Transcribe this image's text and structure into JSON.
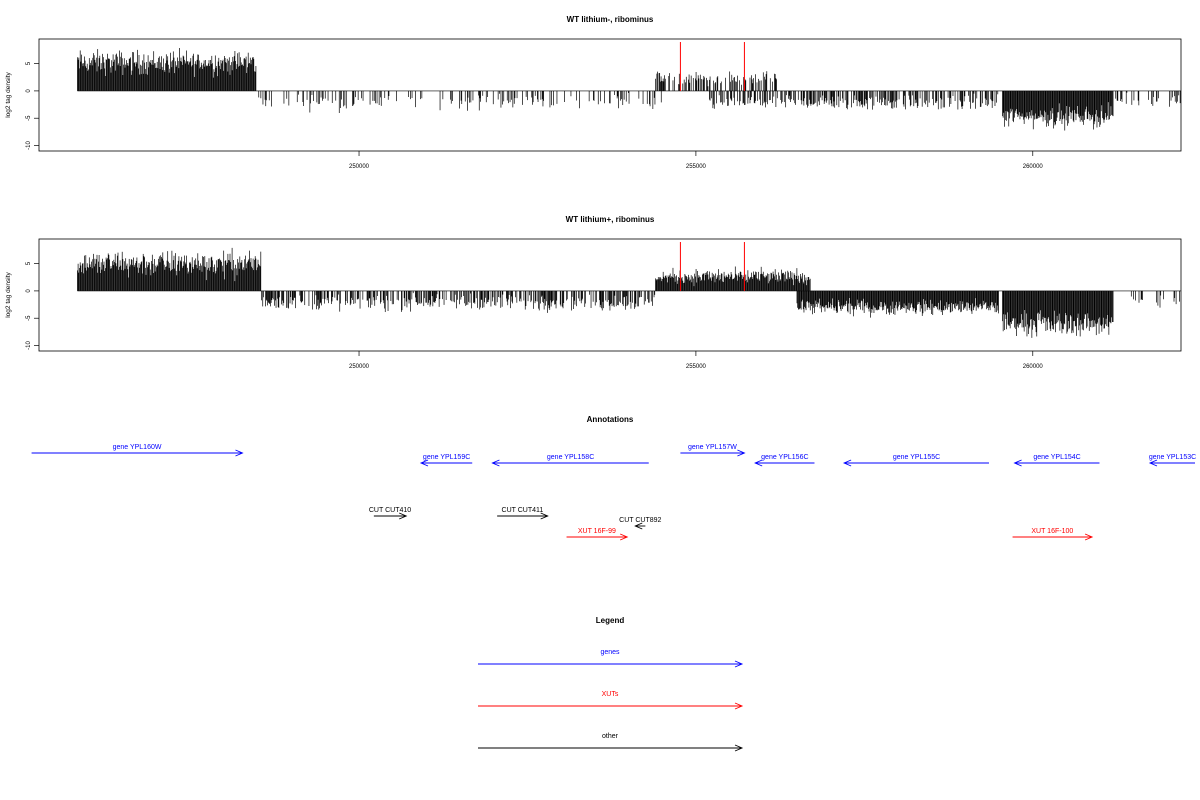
{
  "chart_data": [
    {
      "type": "bar",
      "title": "WT lithium-, ribominus",
      "ylabel": "log2 tag density",
      "xlim": [
        245250,
        262200
      ],
      "ylim": [
        -11,
        9.5
      ],
      "x_ticks": [
        250000,
        255000,
        260000
      ],
      "y_ticks": [
        -10,
        -5,
        0,
        5
      ],
      "tick_labels_x": [
        "250000",
        "255000",
        "260000"
      ],
      "tick_labels_y": [
        "-10",
        "-5",
        "0",
        "5"
      ],
      "red_markers_x": [
        254770,
        255720
      ],
      "series": [
        {
          "x_start": 245820,
          "x_end": 248470,
          "level": 5.2,
          "spread": 2.2,
          "density": "dense",
          "sign": "positive"
        },
        {
          "x_start": 248470,
          "x_end": 254500,
          "level": -2.0,
          "spread": 1.5,
          "density": "sparse",
          "sign": "negative"
        },
        {
          "x_start": 254400,
          "x_end": 256200,
          "level": 2.2,
          "spread": 1.3,
          "density": "medium",
          "sign": "positive"
        },
        {
          "x_start": 255200,
          "x_end": 259500,
          "level": -2.2,
          "spread": 1.3,
          "density": "medium",
          "sign": "negative"
        },
        {
          "x_start": 259550,
          "x_end": 261200,
          "level": -4.7,
          "spread": 2.0,
          "density": "dense",
          "sign": "negative"
        },
        {
          "x_start": 261200,
          "x_end": 262200,
          "level": -1.8,
          "spread": 1.1,
          "density": "sparse",
          "sign": "negative"
        }
      ]
    },
    {
      "type": "bar",
      "title": "WT lithium+, ribominus",
      "ylabel": "log2 tag density",
      "xlim": [
        245250,
        262200
      ],
      "ylim": [
        -11,
        9.5
      ],
      "x_ticks": [
        250000,
        255000,
        260000
      ],
      "y_ticks": [
        -10,
        -5,
        0,
        5
      ],
      "tick_labels_x": [
        "250000",
        "255000",
        "260000"
      ],
      "tick_labels_y": [
        "-10",
        "-5",
        "0",
        "5"
      ],
      "red_markers_x": [
        254770,
        255720
      ],
      "series": [
        {
          "x_start": 245820,
          "x_end": 248550,
          "level": 5.0,
          "spread": 2.4,
          "density": "dense",
          "sign": "positive"
        },
        {
          "x_start": 248550,
          "x_end": 254400,
          "level": -2.1,
          "spread": 1.5,
          "density": "medium",
          "sign": "negative"
        },
        {
          "x_start": 254400,
          "x_end": 256700,
          "level": 2.6,
          "spread": 1.4,
          "density": "dense",
          "sign": "positive"
        },
        {
          "x_start": 256500,
          "x_end": 259500,
          "level": -3.0,
          "spread": 1.4,
          "density": "dense",
          "sign": "negative"
        },
        {
          "x_start": 259550,
          "x_end": 261200,
          "level": -6.0,
          "spread": 2.2,
          "density": "dense",
          "sign": "negative"
        },
        {
          "x_start": 261400,
          "x_end": 262200,
          "level": -2.0,
          "spread": 1.2,
          "density": "sparse",
          "sign": "negative"
        }
      ]
    }
  ],
  "annotations": {
    "title": "Annotations",
    "genes": [
      {
        "label": "gene YPL160W",
        "x1": 245140,
        "x2": 248270,
        "dir": "right",
        "row": 0
      },
      {
        "label": "gene YPL159C",
        "x1": 250920,
        "x2": 251680,
        "dir": "left",
        "row": 1
      },
      {
        "label": "gene YPL158C",
        "x1": 251980,
        "x2": 254300,
        "dir": "left",
        "row": 1
      },
      {
        "label": "gene YPL157W",
        "x1": 254770,
        "x2": 255720,
        "dir": "right",
        "row": 0
      },
      {
        "label": "gene YPL156C",
        "x1": 255880,
        "x2": 256760,
        "dir": "left",
        "row": 1
      },
      {
        "label": "gene YPL155C",
        "x1": 257200,
        "x2": 259350,
        "dir": "left",
        "row": 1
      },
      {
        "label": "gene YPL154C",
        "x1": 259730,
        "x2": 260990,
        "dir": "left",
        "row": 1
      },
      {
        "label": "gene YPL153C",
        "x1": 261740,
        "x2": 263200,
        "dir": "left",
        "row": 1
      }
    ],
    "cuts": [
      {
        "label": "CUT CUT410",
        "x1": 250220,
        "x2": 250700,
        "dir": "right",
        "row": 2
      },
      {
        "label": "CUT CUT411",
        "x1": 252050,
        "x2": 252800,
        "dir": "right",
        "row": 2
      },
      {
        "label": "CUT CUT892",
        "x1": 254100,
        "x2": 254250,
        "dir": "left",
        "row": 3
      }
    ],
    "xuts": [
      {
        "label": "XUT 16F-99",
        "x1": 253080,
        "x2": 253980,
        "dir": "right",
        "row": 4
      },
      {
        "label": "XUT 16F-100",
        "x1": 259700,
        "x2": 260880,
        "dir": "right",
        "row": 4
      }
    ]
  },
  "legend": {
    "title": "Legend",
    "items": [
      {
        "label": "genes",
        "color": "#0000ff"
      },
      {
        "label": "XUTs",
        "color": "#ff0000"
      },
      {
        "label": "other",
        "color": "#000000"
      }
    ]
  },
  "colors": {
    "gene": "#0000ff",
    "xut": "#ff0000",
    "other": "#000000",
    "marker": "#ff0000"
  }
}
